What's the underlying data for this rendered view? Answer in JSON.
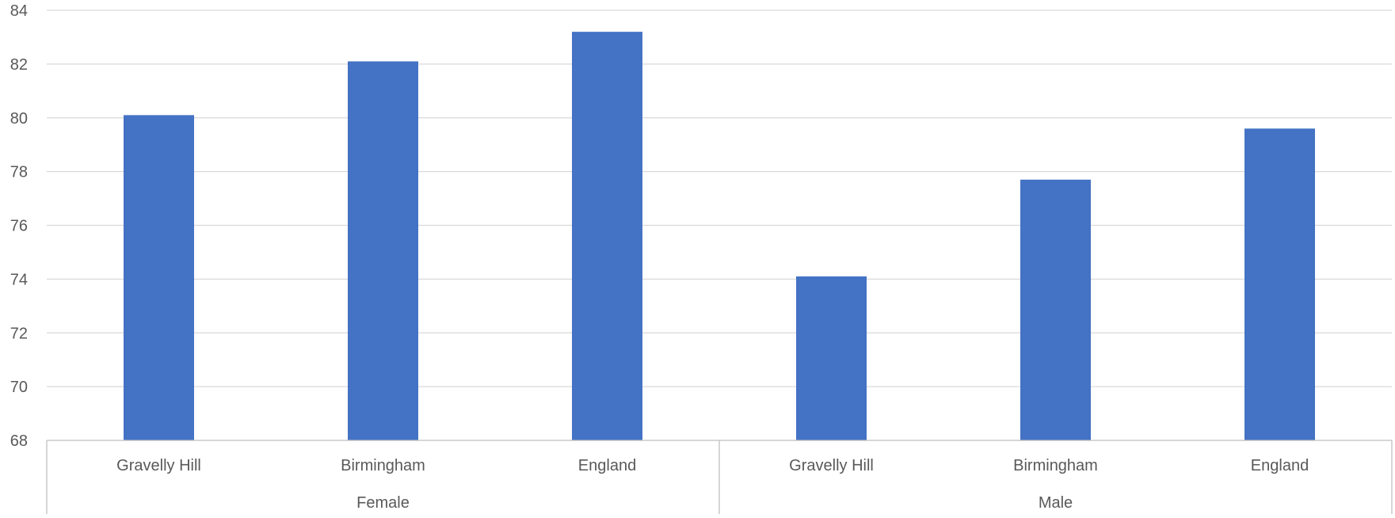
{
  "chart_data": {
    "type": "bar",
    "categories": [
      "Gravelly Hill",
      "Birmingham",
      "England",
      "Gravelly Hill",
      "Birmingham",
      "England"
    ],
    "groups": [
      {
        "label": "Female",
        "count": 3
      },
      {
        "label": "Male",
        "count": 3
      }
    ],
    "series": [
      {
        "values": [
          80.1,
          82.1,
          83.2,
          74.1,
          77.7,
          79.6
        ]
      }
    ],
    "ylim": [
      68,
      84
    ],
    "yticks": [
      68,
      70,
      72,
      74,
      76,
      78,
      80,
      82,
      84
    ],
    "title": "",
    "xlabel": "",
    "ylabel": "",
    "grid": true,
    "legend": "none",
    "colors": {
      "bar": "#4472C4",
      "grid": "#D9D9D9",
      "axis": "#BFBFBF",
      "text": "#595959"
    }
  }
}
